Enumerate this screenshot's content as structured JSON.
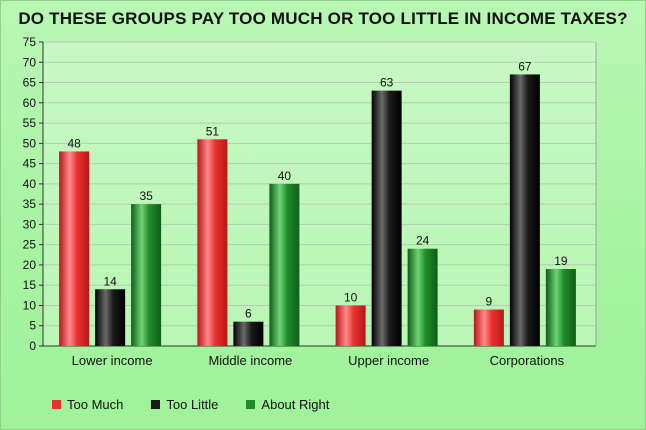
{
  "chart_data": {
    "type": "bar",
    "title": "DO THESE GROUPS PAY TOO MUCH OR TOO LITTLE IN INCOME TAXES?",
    "categories": [
      "Lower income",
      "Middle income",
      "Upper income",
      "Corporations"
    ],
    "series": [
      {
        "name": "Too Much",
        "values": [
          48,
          51,
          10,
          9
        ],
        "color": "#e8322f"
      },
      {
        "name": "Too Little",
        "values": [
          14,
          6,
          63,
          67
        ],
        "color": "#1a1a1a"
      },
      {
        "name": "About Right",
        "values": [
          35,
          40,
          24,
          19
        ],
        "color": "#1f8c2a"
      }
    ],
    "ylim": [
      0,
      75
    ],
    "yticks": [
      0,
      5,
      10,
      15,
      20,
      25,
      30,
      35,
      40,
      45,
      50,
      55,
      60,
      65,
      70,
      75
    ],
    "grid": true,
    "legend_position": "bottom-left",
    "xlabel": "",
    "ylabel": ""
  }
}
